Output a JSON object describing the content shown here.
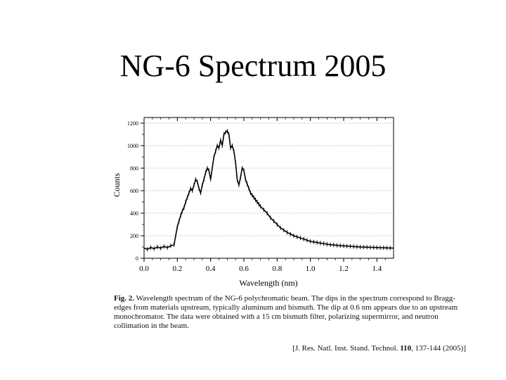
{
  "slide": {
    "title": "NG-6 Spectrum 2005"
  },
  "chart_data": {
    "type": "line",
    "title": "",
    "xlabel": "Wavelength (nm)",
    "ylabel": "Counts",
    "xlim": [
      0.0,
      1.5
    ],
    "ylim": [
      0,
      1250
    ],
    "xticks": [
      "0.0",
      "0.2",
      "0.4",
      "0.6",
      "0.8",
      "1.0",
      "1.2",
      "1.4"
    ],
    "yticks": [
      "0",
      "200",
      "400",
      "600",
      "800",
      "1000",
      "1200"
    ],
    "grid": "horizontal-dotted",
    "series": [
      {
        "x": [
          0.0,
          0.02,
          0.04,
          0.06,
          0.08,
          0.1,
          0.12,
          0.14,
          0.16,
          0.18,
          0.19,
          0.2,
          0.21,
          0.22,
          0.23,
          0.24,
          0.25,
          0.26,
          0.27,
          0.28,
          0.29,
          0.3,
          0.31,
          0.32,
          0.33,
          0.34,
          0.35,
          0.36,
          0.37,
          0.38,
          0.39,
          0.4,
          0.41,
          0.42,
          0.43,
          0.44,
          0.45,
          0.46,
          0.47,
          0.48,
          0.49,
          0.5,
          0.51,
          0.52,
          0.53,
          0.54,
          0.55,
          0.56,
          0.57,
          0.58,
          0.59,
          0.6,
          0.61,
          0.62,
          0.63,
          0.64,
          0.65,
          0.66,
          0.67,
          0.68,
          0.69,
          0.7,
          0.72,
          0.74,
          0.76,
          0.78,
          0.8,
          0.82,
          0.84,
          0.86,
          0.88,
          0.9,
          0.92,
          0.94,
          0.96,
          0.98,
          1.0,
          1.02,
          1.04,
          1.06,
          1.08,
          1.1,
          1.12,
          1.14,
          1.16,
          1.18,
          1.2,
          1.22,
          1.24,
          1.26,
          1.28,
          1.3,
          1.32,
          1.34,
          1.36,
          1.38,
          1.4,
          1.42,
          1.44,
          1.46,
          1.48,
          1.5
        ],
        "y": [
          90,
          80,
          95,
          85,
          100,
          90,
          105,
          95,
          110,
          120,
          200,
          280,
          330,
          380,
          420,
          450,
          500,
          540,
          580,
          620,
          600,
          650,
          700,
          680,
          620,
          580,
          650,
          700,
          760,
          800,
          780,
          700,
          800,
          900,
          950,
          1000,
          980,
          1050,
          1000,
          1100,
          1120,
          1130,
          1100,
          980,
          1000,
          950,
          850,
          700,
          650,
          720,
          800,
          780,
          700,
          660,
          620,
          580,
          560,
          540,
          520,
          500,
          480,
          460,
          430,
          400,
          360,
          330,
          300,
          270,
          250,
          230,
          215,
          200,
          190,
          180,
          170,
          160,
          150,
          145,
          140,
          135,
          130,
          125,
          120,
          118,
          115,
          112,
          110,
          108,
          106,
          104,
          102,
          100,
          99,
          98,
          97,
          96,
          95,
          94,
          93,
          92,
          91,
          90
        ]
      }
    ]
  },
  "caption": {
    "fig_label": "Fig. 2.",
    "text": "Wavelength spectrum of the NG-6 polychromatic beam. The dips in the spectrum correspond to Bragg-edges from materials upstream, typically aluminum and bismuth. The dip at 0.6 nm appears due to an upstream monochromator. The data were obtained with a 15 cm bismuth filter, polarizing supermirror, and neutron collimation in the beam."
  },
  "citation": {
    "prefix": "[J. Res. Natl. Inst. Stand. Technol.",
    "volume": "110",
    "suffix": ", 137-144 (2005)]"
  }
}
